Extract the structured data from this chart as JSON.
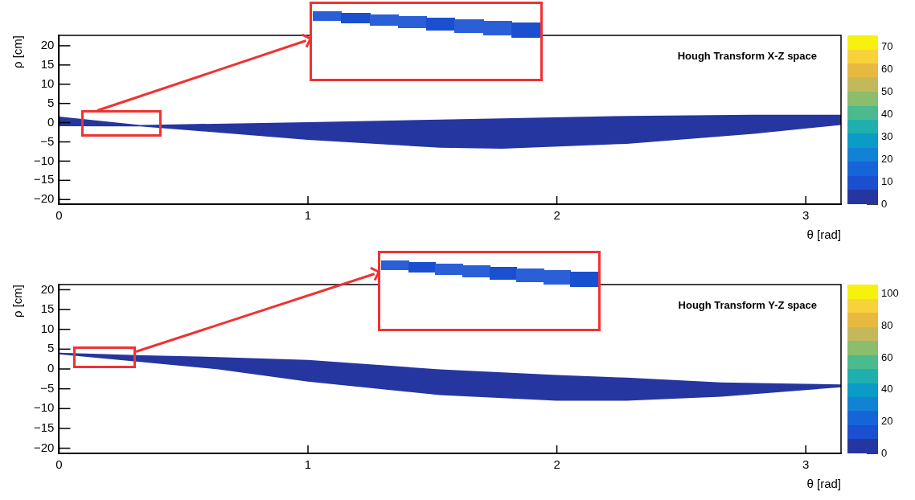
{
  "chart_data": [
    {
      "type": "line",
      "title": "Hough Transform X-Z space",
      "xlabel": "θ [rad]",
      "ylabel": "ρ [cm]",
      "xlim": [
        0,
        3.1416
      ],
      "xticks": [
        0,
        1,
        2,
        3
      ],
      "ylim": [
        -21.2,
        22.7
      ],
      "yticks": [
        -20,
        -15,
        -10,
        -5,
        0,
        5,
        10,
        15,
        20
      ],
      "clim": [
        0,
        75
      ],
      "cticks": [
        0,
        10,
        20,
        30,
        40,
        50,
        60,
        70
      ],
      "grid": false,
      "legend": false,
      "series": [
        {
          "color": "#2536a0",
          "x": [
            0,
            0.325,
            0.51,
            1.0,
            1.53,
            1.78,
            2.28,
            2.79,
            3.1416
          ],
          "values": [
            null,
            null,
            null,
            null,
            null,
            null,
            null,
            null,
            null
          ],
          "lower": [
            -0.9,
            -1.0,
            -1.9,
            -4.5,
            -6.5,
            -6.8,
            -5.5,
            -2.9,
            -0.6
          ],
          "upper": [
            1.6,
            -0.6,
            -0.4,
            0.1,
            0.8,
            1.1,
            1.75,
            2.05,
            2.05
          ]
        }
      ]
    },
    {
      "type": "line",
      "title": "Hough Transform Y-Z space",
      "xlabel": "θ [rad]",
      "ylabel": "ρ [cm]",
      "xlim": [
        0,
        3.1416
      ],
      "xticks": [
        0,
        1,
        2,
        3
      ],
      "ylim": [
        -21.3,
        21.3
      ],
      "yticks": [
        -20,
        -15,
        -10,
        -5,
        0,
        5,
        10,
        15,
        20
      ],
      "clim": [
        0,
        106
      ],
      "cticks": [
        0,
        20,
        40,
        60,
        80,
        100
      ],
      "grid": false,
      "legend": false,
      "series": [
        {
          "color": "#2536a0",
          "x": [
            0,
            0.31,
            0.64,
            1.0,
            1.53,
            2.0,
            2.28,
            2.66,
            3.1416
          ],
          "values": [
            null,
            null,
            null,
            null,
            null,
            null,
            null,
            null,
            null
          ],
          "lower": [
            3.7,
            1.9,
            -0.1,
            -3.2,
            -6.6,
            -8.0,
            -8.0,
            -7.0,
            -4.6
          ],
          "upper": [
            4.1,
            3.5,
            3.0,
            2.3,
            -0.1,
            -1.5,
            -2.2,
            -3.4,
            -3.9
          ]
        }
      ]
    }
  ]
}
